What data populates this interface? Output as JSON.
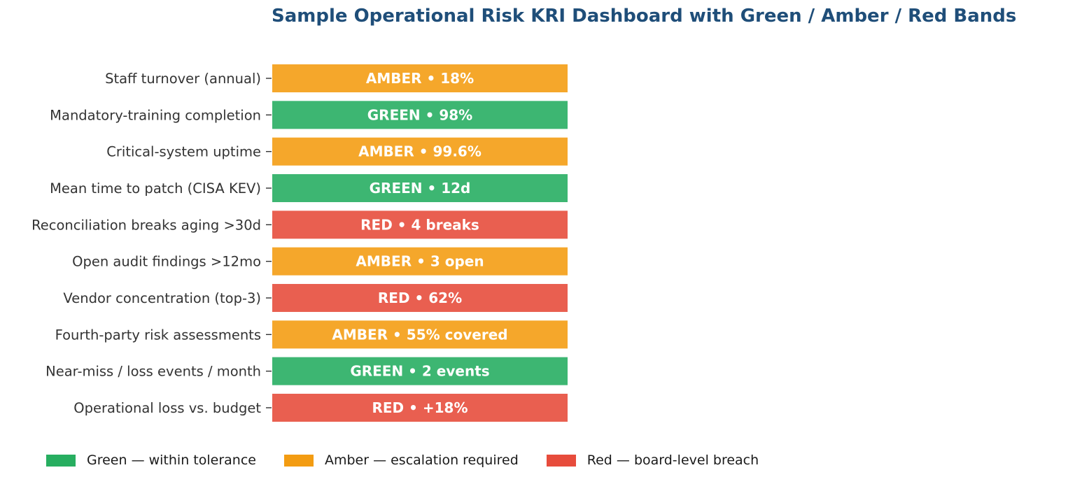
{
  "chart_data": {
    "type": "bar",
    "orientation": "horizontal",
    "title": "Sample Operational Risk KRI Dashboard with Green / Amber / Red Bands",
    "xlabel": "",
    "ylabel": "",
    "grid": false,
    "legend_position": "bottom",
    "categories": [
      "Staff turnover (annual)",
      "Mandatory-training completion",
      "Critical-system uptime",
      "Mean time to patch (CISA KEV)",
      "Reconciliation breaks aging >30d",
      "Open audit findings >12mo",
      "Vendor concentration (top-3)",
      "Fourth-party risk assessments",
      "Near-miss / loss events / month",
      "Operational loss vs. budget"
    ],
    "values": [
      1,
      1,
      1,
      1,
      1,
      1,
      1,
      1,
      1,
      1
    ],
    "status": [
      "AMBER",
      "GREEN",
      "AMBER",
      "GREEN",
      "RED",
      "AMBER",
      "RED",
      "AMBER",
      "GREEN",
      "RED"
    ],
    "readings": [
      "18%",
      "98%",
      "99.6%",
      "12d",
      "4 breaks",
      "3 open",
      "62%",
      "55% covered",
      "2 events",
      "+18%"
    ],
    "separator": "•",
    "legend": [
      {
        "status": "GREEN",
        "label": "Green — within tolerance"
      },
      {
        "status": "AMBER",
        "label": "Amber — escalation required"
      },
      {
        "status": "RED",
        "label": "Red — board-level breach"
      }
    ]
  },
  "colors": {
    "GREEN": "#3db672",
    "AMBER": "#f5a72b",
    "RED": "#e95f50",
    "legend_green": "#27ae60",
    "legend_amber": "#f39c12",
    "legend_red": "#e74c3c",
    "title": "#1f4e79",
    "label_text": "#333333",
    "bar_text": "#ffffff"
  }
}
